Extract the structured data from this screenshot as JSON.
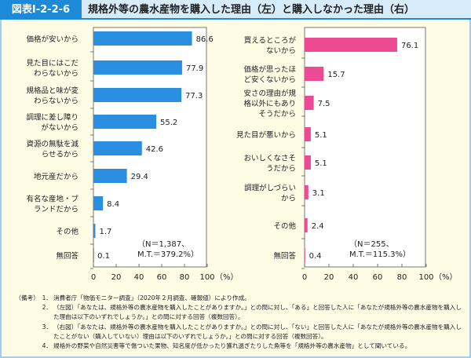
{
  "header": {
    "label": "図表Ⅰ-2-2-6",
    "title": "規格外等の農水産物を購入した理由（左）と購入しなかった理由（右）"
  },
  "colors": {
    "left": "#2a8fe0",
    "right": "#ec4a92",
    "header": "#1c8ad8"
  },
  "chart_data": [
    {
      "type": "bar",
      "orientation": "horizontal",
      "title": "購入した理由（左）",
      "categories": [
        [
          "価格が安いから"
        ],
        [
          "見た目にはこだ",
          "わらないから"
        ],
        [
          "規格品と味が変",
          "わらないから"
        ],
        [
          "調理に差し障り",
          "がないから"
        ],
        [
          "資源の無駄を減",
          "らせるから"
        ],
        [
          "地元産だから"
        ],
        [
          "有名な産地・ブ",
          "ランドだから"
        ],
        [
          "その他"
        ],
        [
          "無回答"
        ]
      ],
      "values": [
        86.6,
        77.9,
        77.3,
        55.2,
        42.6,
        29.4,
        8.4,
        1.7,
        0.1
      ],
      "labels": [
        "86.6",
        "77.9",
        "77.3",
        "55.2",
        "42.6",
        "29.4",
        "8.4",
        "1.7",
        "0.1"
      ],
      "xlim": [
        0,
        100
      ],
      "ticks": [
        "0",
        "20",
        "40",
        "60",
        "80",
        "100"
      ],
      "unit": "（%）",
      "note": [
        "（N＝1,387、",
        "M.T.＝379.2%）"
      ]
    },
    {
      "type": "bar",
      "orientation": "horizontal",
      "title": "購入しなかった理由（右）",
      "categories": [
        [
          "買えるところが",
          "ないから"
        ],
        [
          "価格が思ったほ",
          "ど安くないから"
        ],
        [
          "安さの理由が規",
          "格以外にもあり",
          "そうだから"
        ],
        [
          "見た目が悪いから"
        ],
        [
          "おいしくなさそ",
          "うだから"
        ],
        [
          "調理がしづらい",
          "から"
        ],
        [
          "その他"
        ],
        [
          "無回答"
        ]
      ],
      "values": [
        76.1,
        15.7,
        7.5,
        5.1,
        5.1,
        3.1,
        2.4,
        0.4
      ],
      "labels": [
        "76.1",
        "15.7",
        "7.5",
        "5.1",
        "5.1",
        "3.1",
        "2.4",
        "0.4"
      ],
      "xlim": [
        0,
        100
      ],
      "ticks": [
        "0",
        "20",
        "40",
        "60",
        "80",
        "100"
      ],
      "unit": "（%）",
      "note": [
        "（N＝255、",
        "M.T.＝115.3%）"
      ]
    }
  ],
  "notes": [
    {
      "k": "（備考）　1．",
      "t": "消費者庁「物価モニター調査」（2020年２月調査、確報値）により作成。"
    },
    {
      "k": "2．",
      "t": "（左図）「あなたは、規格外等の農水産物を購入したことがありますか。」との問に対し、「ある」と回答した人に「あなたが規格外等の農水産物を購入した理由は以下のいずれでしょうか。」との問に対する回答（複数回答）。"
    },
    {
      "k": "3．",
      "t": "（右図）「あなたは、規格外等の農水産物を購入したことがありますか。」との問に対し、「ない」と回答した人に「あなたが規格外等の農水産物を購入したことがない（購入していない）理由は以下のいずれでしょうか。」との問に対する回答（複数回答）。"
    },
    {
      "k": "4．",
      "t": "規格外の野菜や自然災害等で傷ついた果物、知名度が低かったり獲れ過ぎたりした魚等を「規格外等の農水産物」として聞いている。"
    }
  ]
}
